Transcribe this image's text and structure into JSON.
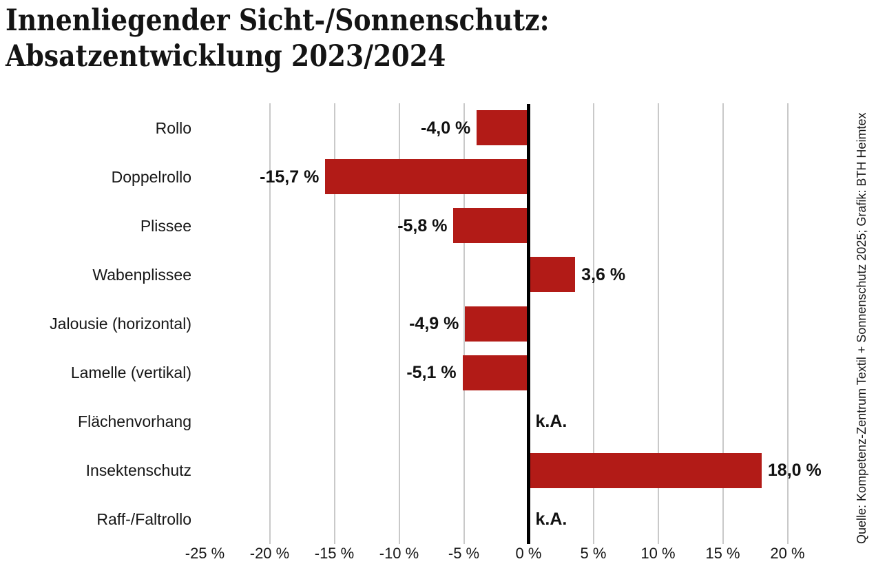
{
  "title": {
    "line1": "Innenliegender Sicht-/Sonnenschutz:",
    "line2": "Absatzentwicklung 2023/2024"
  },
  "source": "Quelle: Kompetenz-Zentrum Textil + Sonnenschutz 2025; Grafik: BTH Heimtex",
  "colors": {
    "bar": "#b21b17",
    "grid": "#c9c9c9",
    "axis": "#000000",
    "text": "#161616"
  },
  "chart_data": {
    "type": "bar",
    "orientation": "horizontal",
    "title": "Innenliegender Sicht-/Sonnenschutz: Absatzentwicklung 2023/2024",
    "unit": "%",
    "categories": [
      "Rollo",
      "Doppelrollo",
      "Plissee",
      "Wabenplissee",
      "Jalousie (horizontal)",
      "Lamelle (vertikal)",
      "Flächenvorhang",
      "Insektenschutz",
      "Raff-/Faltrollo"
    ],
    "values": [
      -4.0,
      -15.7,
      -5.8,
      3.6,
      -4.9,
      -5.1,
      null,
      18.0,
      null
    ],
    "value_labels": [
      "-4,0 %",
      "-15,7 %",
      "-5,8 %",
      "3,6 %",
      "-4,9 %",
      "-5,1 %",
      "k.A.",
      "18,0 %",
      "k.A."
    ],
    "no_data_label": "k.A.",
    "xlabel": "",
    "ylabel": "",
    "xlim": [
      -25,
      22
    ],
    "x_ticks": [
      -25,
      -20,
      -15,
      -10,
      -5,
      0,
      5,
      10,
      15,
      20
    ],
    "x_tick_labels": [
      "-25 %",
      "-20 %",
      "-15 %",
      "-10 %",
      "-5 %",
      "0 %",
      "5 %",
      "10 %",
      "15 %",
      "20 %"
    ],
    "grid": true,
    "zero_axis": true,
    "legend": false
  }
}
